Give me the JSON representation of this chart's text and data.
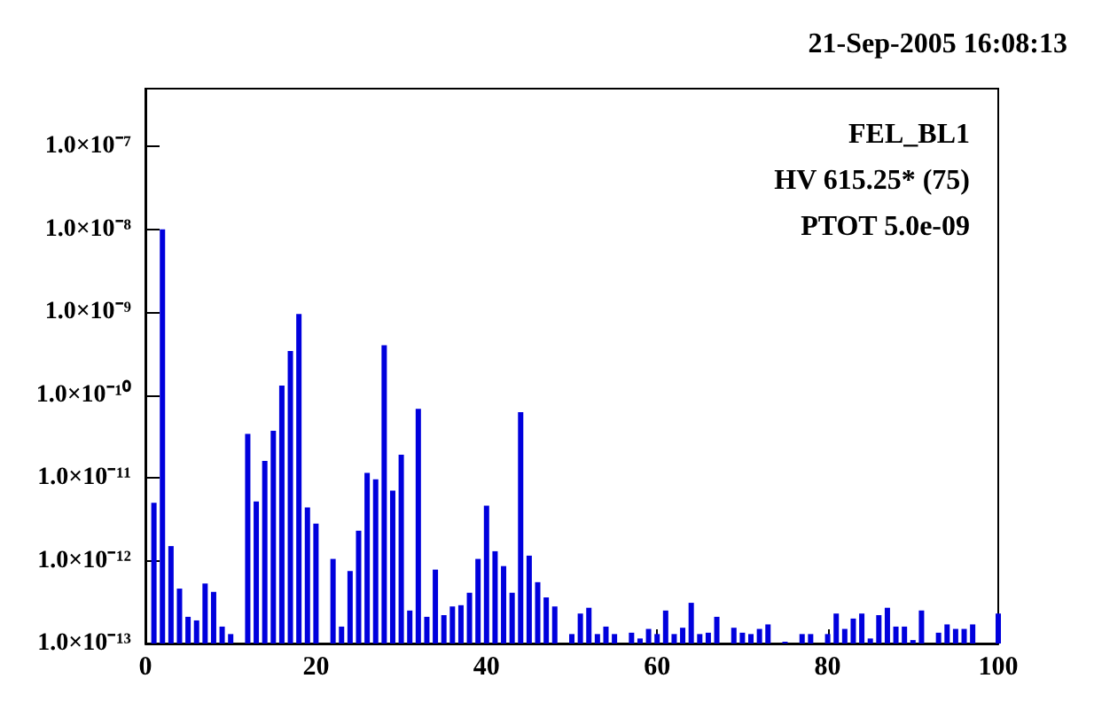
{
  "chart_data": {
    "type": "bar",
    "title": "21-Sep-2005 16:08:13",
    "annotations": [
      "FEL_BL1",
      "HV 615.25* (75)",
      "PTOT 5.0e-09"
    ],
    "x": [
      1,
      2,
      3,
      4,
      5,
      6,
      7,
      8,
      9,
      10,
      12,
      13,
      14,
      15,
      16,
      17,
      18,
      19,
      20,
      22,
      23,
      24,
      25,
      26,
      27,
      28,
      29,
      30,
      31,
      32,
      33,
      34,
      35,
      36,
      37,
      38,
      39,
      40,
      41,
      42,
      43,
      44,
      45,
      46,
      47,
      48,
      50,
      51,
      52,
      53,
      54,
      55,
      57,
      58,
      59,
      60,
      61,
      62,
      63,
      64,
      65,
      66,
      67,
      69,
      70,
      71,
      72,
      73,
      75,
      77,
      78,
      80,
      81,
      82,
      83,
      84,
      85,
      86,
      87,
      88,
      89,
      90,
      91,
      93,
      94,
      95,
      96,
      97,
      100
    ],
    "series": [
      {
        "color": "#0000dd",
        "values": [
          5e-12,
          1e-08,
          1.5e-12,
          4.6e-13,
          2.1e-13,
          1.9e-13,
          5.3e-13,
          4.2e-13,
          1.6e-13,
          1.3e-13,
          3.4e-11,
          5.2e-12,
          1.6e-11,
          3.7e-11,
          1.3e-10,
          3.4e-10,
          9.5e-10,
          4.4e-12,
          2.8e-12,
          1.05e-12,
          1.6e-13,
          7.5e-13,
          2.3e-12,
          1.15e-11,
          9.6e-12,
          4e-10,
          7e-12,
          1.9e-11,
          2.5e-13,
          6.8e-11,
          2.1e-13,
          7.8e-13,
          2.2e-13,
          2.8e-13,
          2.9e-13,
          4.1e-13,
          1.05e-12,
          4.6e-12,
          1.3e-12,
          8.6e-13,
          4.1e-13,
          6.2e-11,
          1.15e-12,
          5.5e-13,
          3.6e-13,
          2.8e-13,
          1.3e-13,
          2.3e-13,
          2.7e-13,
          1.3e-13,
          1.6e-13,
          1.3e-13,
          1.35e-13,
          1.15e-13,
          1.5e-13,
          1.3e-13,
          2.5e-13,
          1.3e-13,
          1.55e-13,
          3.1e-13,
          1.3e-13,
          1.35e-13,
          2.1e-13,
          1.55e-13,
          1.35e-13,
          1.3e-13,
          1.5e-13,
          1.7e-13,
          1.05e-13,
          1.3e-13,
          1.3e-13,
          1.3e-13,
          2.3e-13,
          1.5e-13,
          2e-13,
          2.3e-13,
          1.15e-13,
          2.2e-13,
          2.7e-13,
          1.6e-13,
          1.6e-13,
          1.1e-13,
          2.5e-13,
          1.35e-13,
          1.7e-13,
          1.5e-13,
          1.5e-13,
          1.7e-13,
          2.3e-13
        ]
      }
    ],
    "xlim": [
      0,
      100
    ],
    "xticks": [
      0,
      20,
      40,
      60,
      80,
      100
    ],
    "ylim": [
      1e-13,
      5e-07
    ],
    "yticks": [
      {
        "value": 1e-13,
        "label": "1.0×10⁻¹³"
      },
      {
        "value": 1e-12,
        "label": "1.0×10⁻¹²"
      },
      {
        "value": 1e-11,
        "label": "1.0×10⁻¹¹"
      },
      {
        "value": 1e-10,
        "label": "1.0×10⁻¹⁰"
      },
      {
        "value": 1e-09,
        "label": "1.0×10⁻⁹"
      },
      {
        "value": 1e-08,
        "label": "1.0×10⁻⁸"
      },
      {
        "value": 1e-07,
        "label": "1.0×10⁻⁷"
      }
    ],
    "log": "y"
  }
}
